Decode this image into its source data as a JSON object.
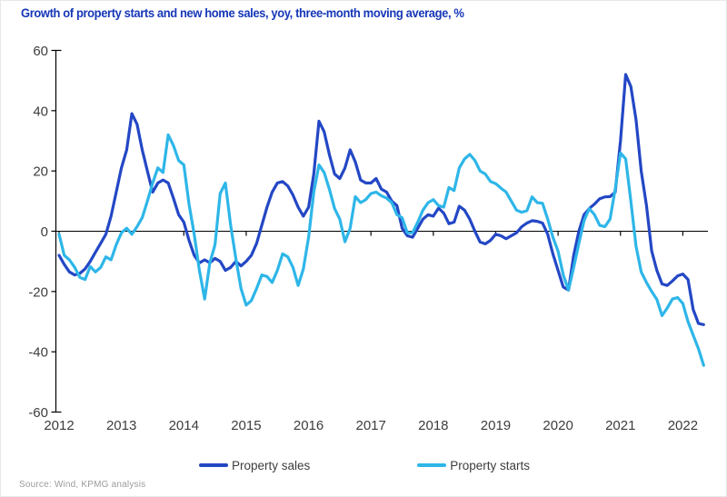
{
  "title": "Growth of property starts and new home sales, yoy, three-month moving average, %",
  "source": "Source: Wind, KPMG analysis",
  "legend": [
    {
      "label": "Property sales",
      "color": "#2347c5"
    },
    {
      "label": "Property starts",
      "color": "#2eb6e8"
    }
  ],
  "colors": {
    "title_blue": "#1637b8",
    "axis_line": "#000000",
    "tick_text": "#3d3d3d"
  },
  "chart_data": {
    "type": "line",
    "title": "Growth of property starts and new home sales, yoy, three-month moving average, %",
    "x_start": "2012-01",
    "x_step": "1 month",
    "x_tick_labels": [
      "2012",
      "2013",
      "2014",
      "2015",
      "2016",
      "2017",
      "2018",
      "2019",
      "2020",
      "2021",
      "2022"
    ],
    "y_ticks": [
      60,
      40,
      20,
      0,
      -20,
      -40,
      -60
    ],
    "ylim": [
      -60,
      60
    ],
    "grid": "zero-line-only",
    "legend_position": "bottom-center",
    "series": [
      {
        "name": "Property sales",
        "color": "#2347c5",
        "values": [
          -8,
          -11,
          -13.5,
          -14.5,
          -14,
          -12.5,
          -10,
          -7,
          -4,
          -1,
          5,
          13,
          21,
          27,
          39,
          35.5,
          27,
          20,
          13,
          16,
          17,
          16,
          11,
          5.5,
          3,
          -3,
          -8,
          -10.5,
          -9.5,
          -10.5,
          -9,
          -10,
          -13,
          -12,
          -10,
          -11.5,
          -10,
          -8,
          -4,
          2,
          8,
          13,
          16,
          16.5,
          15,
          12,
          8,
          5,
          8,
          19,
          36.5,
          33,
          25.5,
          19,
          17.5,
          21,
          27,
          23,
          17,
          16,
          16,
          17.5,
          14,
          13,
          10,
          8.5,
          1,
          -1.5,
          -2,
          1,
          4,
          5.5,
          5,
          7.7,
          6,
          2.5,
          3,
          8.3,
          7,
          4,
          0,
          -3.6,
          -4.2,
          -3,
          -1,
          -1.5,
          -2.5,
          -1.5,
          -0.5,
          1.5,
          2.7,
          3.5,
          3.3,
          2.7,
          -1,
          -7.5,
          -13,
          -18.5,
          -19.5,
          -8,
          0,
          5.5,
          7.5,
          9,
          10.8,
          11.4,
          11.5,
          13,
          30,
          52,
          48,
          37,
          20,
          8.5,
          -6.5,
          -13,
          -17.5,
          -18,
          -16.5,
          -14.8,
          -14.2,
          -16,
          -26,
          -30.6,
          -31
        ]
      },
      {
        "name": "Property starts",
        "color": "#2eb6e8",
        "values": [
          -1,
          -8,
          -9.5,
          -12,
          -15.3,
          -16,
          -11.7,
          -13.5,
          -12,
          -8.5,
          -9.5,
          -4.5,
          -0.5,
          1,
          -1,
          1.5,
          4.5,
          10,
          16,
          21,
          19.5,
          32,
          28.5,
          23.5,
          22,
          9,
          -1,
          -13,
          -22.5,
          -10.5,
          -4.5,
          12.5,
          16,
          2,
          -9,
          -19,
          -24.5,
          -23,
          -19,
          -14.5,
          -15,
          -17,
          -13,
          -7.5,
          -8.5,
          -12,
          -18,
          -12.5,
          -2,
          13,
          22,
          19.5,
          14,
          7.5,
          4,
          -3.5,
          1,
          11.5,
          9.5,
          10.5,
          12.5,
          13,
          11.8,
          11,
          9.5,
          5.5,
          4.5,
          -0.5,
          -0.5,
          3,
          7,
          9.5,
          10.5,
          8.5,
          8,
          14.5,
          13.5,
          21,
          24,
          25.5,
          23.5,
          20,
          19,
          16.5,
          15.8,
          14.3,
          13,
          10,
          7,
          6.3,
          6.8,
          11.4,
          9.5,
          9.3,
          4,
          -2,
          -6.6,
          -14.5,
          -19.5,
          -12,
          -4,
          3.5,
          7.5,
          5.5,
          2,
          1.5,
          4,
          14,
          26,
          24,
          10,
          -5,
          -13.5,
          -17,
          -20,
          -22.6,
          -28,
          -25.5,
          -22.5,
          -22,
          -24,
          -30,
          -34.5,
          -39,
          -44.5
        ]
      }
    ]
  }
}
